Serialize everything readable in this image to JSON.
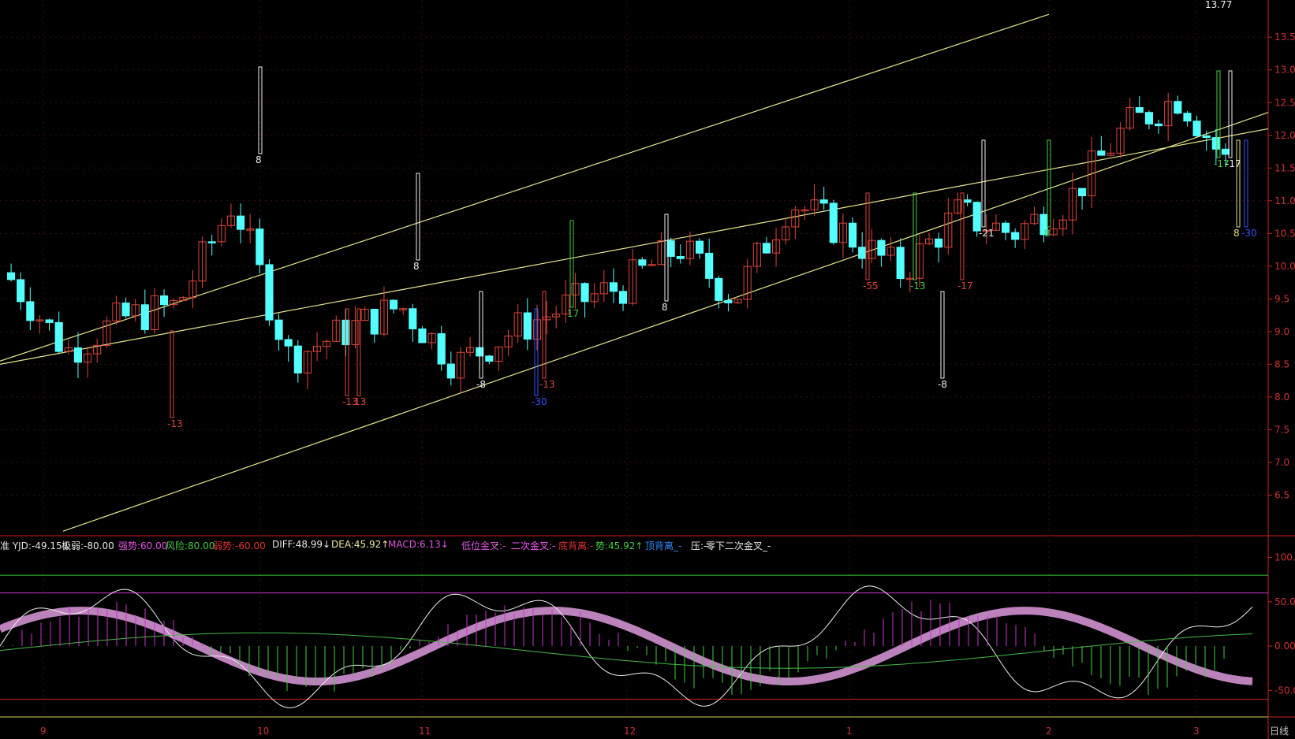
{
  "chart_data": [
    {
      "type": "candlestick",
      "title": "",
      "y_ticks": [
        "13.5",
        "13.0",
        "12.5",
        "12.0",
        "11.5",
        "11.0",
        "10.5",
        "10.0",
        "9.5",
        "9.0",
        "8.5",
        "8.0",
        "7.5",
        "7.0",
        "6.5"
      ],
      "ylim": [
        6.0,
        13.9
      ],
      "high_label": "13.77",
      "x_month_labels": [
        "9",
        "10",
        "11",
        "12",
        "1",
        "2",
        "3"
      ],
      "annotations_text": [
        "-13",
        "-13",
        "13",
        "8",
        "8",
        "-8",
        "-30",
        "-13",
        "17",
        "8",
        "-8",
        "-55",
        "-13",
        "-17",
        "-21",
        "8",
        "-17",
        "-17",
        "8",
        "-30"
      ],
      "colors": {
        "up": "#e0453a",
        "down": "#54ffff",
        "channel": "#e6e68c",
        "axis": "#cc2222"
      }
    },
    {
      "type": "line",
      "title": "",
      "y_ticks": [
        "100.0",
        "50.00",
        "0.00",
        "-50.00"
      ],
      "ylim": [
        -80,
        105
      ],
      "legend": [
        {
          "text": "准 YJD:-49.15↓",
          "color": "#e0e0e0"
        },
        {
          "text": "极弱:-80.00",
          "color": "#e8e8e8"
        },
        {
          "text": "强势:60.00",
          "color": "#e055e0"
        },
        {
          "text": "风险:80.00",
          "color": "#44cc44"
        },
        {
          "text": "弱势:-60.00",
          "color": "#e03333"
        },
        {
          "text": "DIFF:48.99↓",
          "color": "#e8e8e8"
        },
        {
          "text": "DEA:45.92↑",
          "color": "#e8e8a0"
        },
        {
          "text": "MACD:6.13↓",
          "color": "#dd55dd"
        },
        {
          "text": "低位金叉:-",
          "color": "#dd55dd"
        },
        {
          "text": "-",
          "color": "#cccccc"
        },
        {
          "text": "二次金叉:-",
          "color": "#ff55ff"
        },
        {
          "text": "底背离:-",
          "color": "#dd3333"
        },
        {
          "text": "势:45.92↑",
          "color": "#44cc44"
        },
        {
          "text": "顶背离_-",
          "color": "#3388ff"
        },
        {
          "text": "压:-",
          "color": "#e8e8e8"
        },
        {
          "text": "零下二次金叉_-",
          "color": "#e8e8e8"
        }
      ],
      "ref_lines": [
        {
          "value": 80,
          "color": "#33cc33"
        },
        {
          "value": 60,
          "color": "#cc33cc"
        },
        {
          "value": -60,
          "color": "#cc2222"
        },
        {
          "value": -80,
          "color": "#cccc55"
        }
      ],
      "corner_text": "日线"
    }
  ]
}
